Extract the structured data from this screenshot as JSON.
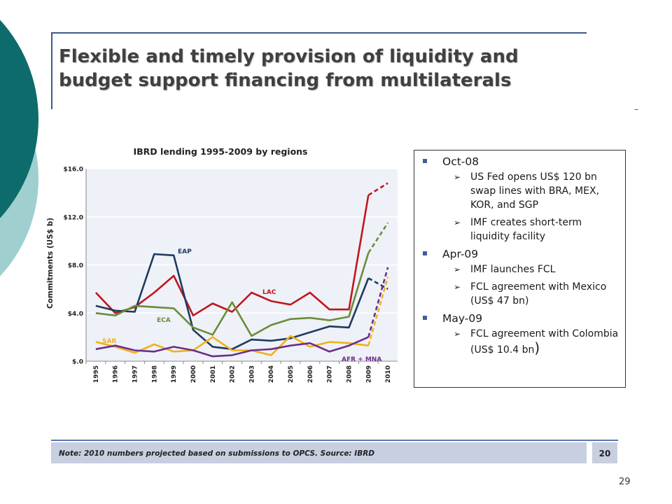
{
  "slide": {
    "title": "Flexible and timely provision of liquidity and budget support financing from multilaterals",
    "dash": "–",
    "note": "Note: 2010 numbers projected based on submissions to OPCS. Source: IBRD",
    "page_box": "20",
    "slide_number": "29"
  },
  "colors": {
    "teal_dark": "#0e6b6b",
    "teal_light": "#9fcfcf",
    "rule_blue": "#3d5a8a",
    "note_bg": "#c7cfe0"
  },
  "info_box": {
    "sections": [
      {
        "heading": "Oct-08",
        "items": [
          "US Fed opens US$ 120 bn swap lines with BRA, MEX, KOR, and SGP",
          "IMF creates short-term liquidity facility"
        ]
      },
      {
        "heading": "Apr-09",
        "items": [
          "IMF launches FCL",
          "FCL agreement with Mexico (US$ 47 bn)"
        ]
      },
      {
        "heading": "May-09",
        "items": [
          "FCL agreement with Colombia (US$ 10.4 bn",
          ")"
        ]
      }
    ]
  },
  "chart_data": {
    "type": "line",
    "title": "IBRD lending 1995-2009 by regions",
    "ylabel": "Commitments (US$ b)",
    "xlabel": "",
    "ylim": [
      0,
      16
    ],
    "yticks": [
      {
        "value": 0,
        "label": "$.0"
      },
      {
        "value": 4,
        "label": "$4.0"
      },
      {
        "value": 8,
        "label": "$8.0"
      },
      {
        "value": 12,
        "label": "$12.0"
      },
      {
        "value": 16,
        "label": "$16.0"
      }
    ],
    "categories": [
      "1995",
      "1996",
      "1997",
      "1998",
      "1999",
      "2000",
      "2001",
      "2002",
      "2003",
      "2004",
      "2005",
      "2006",
      "2007",
      "2008",
      "2009",
      "2010"
    ],
    "grid": "horizontal",
    "projected_from": "2009",
    "series": [
      {
        "name": "LAC",
        "color": "#c0161c",
        "values": [
          5.7,
          4.0,
          4.5,
          5.7,
          7.1,
          3.8,
          4.8,
          4.1,
          5.7,
          5.0,
          4.7,
          5.7,
          4.3,
          4.3,
          13.8,
          14.8
        ]
      },
      {
        "name": "EAP",
        "color": "#1f3a5f",
        "values": [
          4.6,
          4.2,
          4.1,
          8.9,
          8.8,
          2.6,
          1.2,
          1.0,
          1.8,
          1.7,
          1.9,
          2.4,
          2.9,
          2.8,
          6.9,
          6.0
        ]
      },
      {
        "name": "ECA",
        "color": "#6b8c3a",
        "values": [
          4.0,
          3.8,
          4.6,
          4.5,
          4.4,
          2.8,
          2.2,
          4.9,
          2.1,
          3.0,
          3.5,
          3.6,
          3.4,
          3.7,
          9.0,
          11.5
        ]
      },
      {
        "name": "SAR",
        "color": "#f0b21a",
        "values": [
          1.6,
          1.2,
          0.7,
          1.4,
          0.8,
          0.9,
          2.0,
          0.9,
          0.9,
          0.5,
          2.1,
          1.2,
          1.6,
          1.5,
          1.3,
          7.0
        ]
      },
      {
        "name": "AFR + MNA",
        "color": "#6b2f8a",
        "values": [
          1.0,
          1.3,
          0.9,
          0.8,
          1.2,
          0.9,
          0.4,
          0.5,
          0.9,
          1.0,
          1.3,
          1.5,
          0.8,
          1.3,
          2.0,
          7.8
        ]
      }
    ]
  }
}
